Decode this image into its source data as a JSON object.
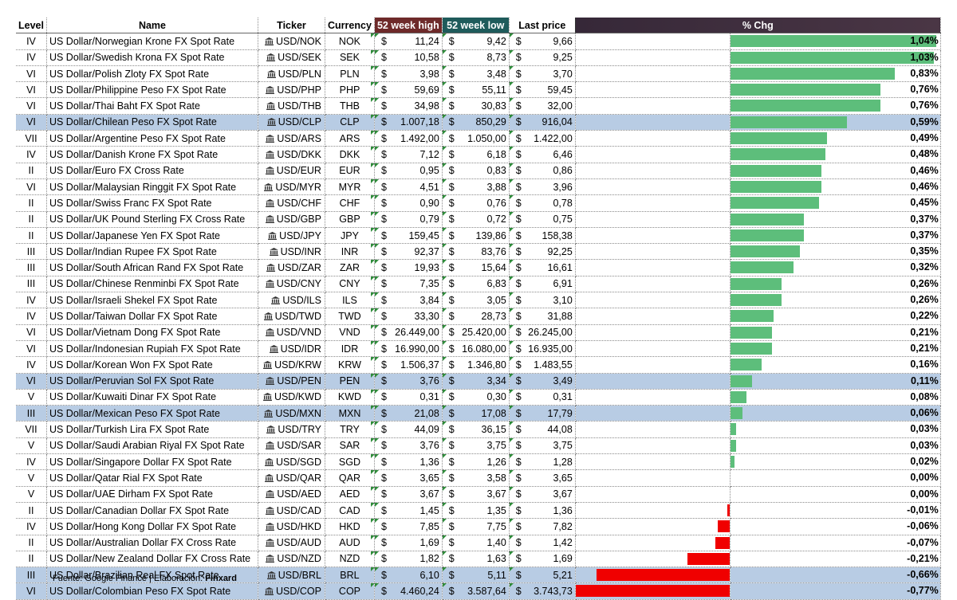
{
  "headers": {
    "level": "Level",
    "name": "Name",
    "ticker": "Ticker",
    "currency": "Currency",
    "high": "52 week high",
    "low": "52 week low",
    "last": "Last price",
    "chg": "% Chg"
  },
  "currency_symbol": "$",
  "colors": {
    "positive": "#5dbe7b",
    "negative": "#f00000",
    "highlight_row": "#b8cce4",
    "high_header": "#6e2a2a",
    "low_header": "#1f5b5b"
  },
  "chart_data": {
    "type": "bar",
    "title": "% Chg",
    "categories": [
      "USD/NOK",
      "USD/SEK",
      "USD/PLN",
      "USD/PHP",
      "USD/THB",
      "USD/CLP",
      "USD/ARS",
      "USD/DKK",
      "USD/EUR",
      "USD/MYR",
      "USD/CHF",
      "USD/GBP",
      "USD/JPY",
      "USD/INR",
      "USD/ZAR",
      "USD/CNY",
      "USD/ILS",
      "USD/TWD",
      "USD/VND",
      "USD/IDR",
      "USD/KRW",
      "USD/PEN",
      "USD/KWD",
      "USD/MXN",
      "USD/TRY",
      "USD/SAR",
      "USD/SGD",
      "USD/QAR",
      "USD/AED",
      "USD/CAD",
      "USD/HKD",
      "USD/AUD",
      "USD/NZD",
      "USD/BRL",
      "USD/COP"
    ],
    "values": [
      1.04,
      1.03,
      0.83,
      0.76,
      0.76,
      0.59,
      0.49,
      0.48,
      0.46,
      0.46,
      0.45,
      0.37,
      0.37,
      0.35,
      0.32,
      0.26,
      0.26,
      0.22,
      0.21,
      0.21,
      0.16,
      0.11,
      0.08,
      0.06,
      0.03,
      0.03,
      0.02,
      0.0,
      0.0,
      -0.01,
      -0.06,
      -0.07,
      -0.21,
      -0.66,
      -0.77
    ],
    "unit": "%"
  },
  "rows": [
    {
      "level": "IV",
      "name": "US Dollar/Norwegian Krone FX Spot Rate",
      "ticker": "USD/NOK",
      "currency": "NOK",
      "high": "11,24",
      "low": "9,42",
      "last": "9,66",
      "chg": "1,04%",
      "value": 1.04,
      "hl": false
    },
    {
      "level": "IV",
      "name": "US Dollar/Swedish Krona FX Spot Rate",
      "ticker": "USD/SEK",
      "currency": "SEK",
      "high": "10,58",
      "low": "8,73",
      "last": "9,25",
      "chg": "1,03%",
      "value": 1.03,
      "hl": false
    },
    {
      "level": "VI",
      "name": "US Dollar/Polish Zloty FX Spot Rate",
      "ticker": "USD/PLN",
      "currency": "PLN",
      "high": "3,98",
      "low": "3,48",
      "last": "3,70",
      "chg": "0,83%",
      "value": 0.83,
      "hl": false
    },
    {
      "level": "VI",
      "name": "US Dollar/Philippine Peso FX Spot Rate",
      "ticker": "USD/PHP",
      "currency": "PHP",
      "high": "59,69",
      "low": "55,11",
      "last": "59,45",
      "chg": "0,76%",
      "value": 0.76,
      "hl": false
    },
    {
      "level": "VI",
      "name": "US Dollar/Thai Baht FX Spot Rate",
      "ticker": "USD/THB",
      "currency": "THB",
      "high": "34,98",
      "low": "30,83",
      "last": "32,00",
      "chg": "0,76%",
      "value": 0.76,
      "hl": false
    },
    {
      "level": "VI",
      "name": "US Dollar/Chilean Peso FX Spot Rate",
      "ticker": "USD/CLP",
      "currency": "CLP",
      "high": "1.007,18",
      "low": "850,29",
      "last": "916,04",
      "chg": "0,59%",
      "value": 0.59,
      "hl": true
    },
    {
      "level": "VII",
      "name": "US Dollar/Argentine Peso FX Spot Rate",
      "ticker": "USD/ARS",
      "currency": "ARS",
      "high": "1.492,00",
      "low": "1.050,00",
      "last": "1.422,00",
      "chg": "0,49%",
      "value": 0.49,
      "hl": false
    },
    {
      "level": "IV",
      "name": "US Dollar/Danish Krone FX Spot Rate",
      "ticker": "USD/DKK",
      "currency": "DKK",
      "high": "7,12",
      "low": "6,18",
      "last": "6,46",
      "chg": "0,48%",
      "value": 0.48,
      "hl": false
    },
    {
      "level": "II",
      "name": "US Dollar/Euro FX Cross Rate",
      "ticker": "USD/EUR",
      "currency": "EUR",
      "high": "0,95",
      "low": "0,83",
      "last": "0,86",
      "chg": "0,46%",
      "value": 0.46,
      "hl": false
    },
    {
      "level": "VI",
      "name": "US Dollar/Malaysian Ringgit FX Spot Rate",
      "ticker": "USD/MYR",
      "currency": "MYR",
      "high": "4,51",
      "low": "3,88",
      "last": "3,96",
      "chg": "0,46%",
      "value": 0.46,
      "hl": false
    },
    {
      "level": "II",
      "name": "US Dollar/Swiss Franc FX Spot Rate",
      "ticker": "USD/CHF",
      "currency": "CHF",
      "high": "0,90",
      "low": "0,76",
      "last": "0,78",
      "chg": "0,45%",
      "value": 0.45,
      "hl": false
    },
    {
      "level": "II",
      "name": "US Dollar/UK Pound Sterling FX Cross Rate",
      "ticker": "USD/GBP",
      "currency": "GBP",
      "high": "0,79",
      "low": "0,72",
      "last": "0,75",
      "chg": "0,37%",
      "value": 0.37,
      "hl": false
    },
    {
      "level": "II",
      "name": "US Dollar/Japanese Yen FX Spot Rate",
      "ticker": "USD/JPY",
      "currency": "JPY",
      "high": "159,45",
      "low": "139,86",
      "last": "158,38",
      "chg": "0,37%",
      "value": 0.37,
      "hl": false
    },
    {
      "level": "III",
      "name": "US Dollar/Indian Rupee FX Spot Rate",
      "ticker": "USD/INR",
      "currency": "INR",
      "high": "92,37",
      "low": "83,76",
      "last": "92,25",
      "chg": "0,35%",
      "value": 0.35,
      "hl": false
    },
    {
      "level": "III",
      "name": "US Dollar/South African Rand FX Spot Rate",
      "ticker": "USD/ZAR",
      "currency": "ZAR",
      "high": "19,93",
      "low": "15,64",
      "last": "16,61",
      "chg": "0,32%",
      "value": 0.32,
      "hl": false
    },
    {
      "level": "III",
      "name": "US Dollar/Chinese Renminbi FX Spot Rate",
      "ticker": "USD/CNY",
      "currency": "CNY",
      "high": "7,35",
      "low": "6,83",
      "last": "6,91",
      "chg": "0,26%",
      "value": 0.26,
      "hl": false
    },
    {
      "level": "IV",
      "name": "US Dollar/Israeli Shekel FX Spot Rate",
      "ticker": "USD/ILS",
      "currency": "ILS",
      "high": "3,84",
      "low": "3,05",
      "last": "3,10",
      "chg": "0,26%",
      "value": 0.26,
      "hl": false
    },
    {
      "level": "IV",
      "name": "US Dollar/Taiwan Dollar FX Spot Rate",
      "ticker": "USD/TWD",
      "currency": "TWD",
      "high": "33,30",
      "low": "28,73",
      "last": "31,88",
      "chg": "0,22%",
      "value": 0.22,
      "hl": false
    },
    {
      "level": "VI",
      "name": "US Dollar/Vietnam Dong FX Spot Rate",
      "ticker": "USD/VND",
      "currency": "VND",
      "high": "26.449,00",
      "low": "25.420,00",
      "last": "26.245,00",
      "chg": "0,21%",
      "value": 0.21,
      "hl": false
    },
    {
      "level": "VI",
      "name": "US Dollar/Indonesian Rupiah FX Spot Rate",
      "ticker": "USD/IDR",
      "currency": "IDR",
      "high": "16.990,00",
      "low": "16.080,00",
      "last": "16.935,00",
      "chg": "0,21%",
      "value": 0.21,
      "hl": false
    },
    {
      "level": "IV",
      "name": "US Dollar/Korean Won FX Spot Rate",
      "ticker": "USD/KRW",
      "currency": "KRW",
      "high": "1.506,37",
      "low": "1.346,80",
      "last": "1.483,55",
      "chg": "0,16%",
      "value": 0.16,
      "hl": false
    },
    {
      "level": "VI",
      "name": "US Dollar/Peruvian Sol FX Spot Rate",
      "ticker": "USD/PEN",
      "currency": "PEN",
      "high": "3,76",
      "low": "3,34",
      "last": "3,49",
      "chg": "0,11%",
      "value": 0.11,
      "hl": true
    },
    {
      "level": "V",
      "name": "US Dollar/Kuwaiti Dinar FX Spot Rate",
      "ticker": "USD/KWD",
      "currency": "KWD",
      "high": "0,31",
      "low": "0,30",
      "last": "0,31",
      "chg": "0,08%",
      "value": 0.08,
      "hl": false
    },
    {
      "level": "III",
      "name": "US Dollar/Mexican Peso FX Spot Rate",
      "ticker": "USD/MXN",
      "currency": "MXN",
      "high": "21,08",
      "low": "17,08",
      "last": "17,79",
      "chg": "0,06%",
      "value": 0.06,
      "hl": true
    },
    {
      "level": "VII",
      "name": "US Dollar/Turkish Lira FX Spot Rate",
      "ticker": "USD/TRY",
      "currency": "TRY",
      "high": "44,09",
      "low": "36,15",
      "last": "44,08",
      "chg": "0,03%",
      "value": 0.03,
      "hl": false
    },
    {
      "level": "V",
      "name": "US Dollar/Saudi Arabian Riyal FX Spot Rate",
      "ticker": "USD/SAR",
      "currency": "SAR",
      "high": "3,76",
      "low": "3,75",
      "last": "3,75",
      "chg": "0,03%",
      "value": 0.03,
      "hl": false
    },
    {
      "level": "IV",
      "name": "US Dollar/Singapore Dollar FX Spot Rate",
      "ticker": "USD/SGD",
      "currency": "SGD",
      "high": "1,36",
      "low": "1,26",
      "last": "1,28",
      "chg": "0,02%",
      "value": 0.02,
      "hl": false
    },
    {
      "level": "V",
      "name": "US Dollar/Qatar Rial FX Spot Rate",
      "ticker": "USD/QAR",
      "currency": "QAR",
      "high": "3,65",
      "low": "3,58",
      "last": "3,65",
      "chg": "0,00%",
      "value": 0.0,
      "hl": false
    },
    {
      "level": "V",
      "name": "US Dollar/UAE Dirham FX Spot Rate",
      "ticker": "USD/AED",
      "currency": "AED",
      "high": "3,67",
      "low": "3,67",
      "last": "3,67",
      "chg": "0,00%",
      "value": 0.0,
      "hl": false
    },
    {
      "level": "II",
      "name": "US Dollar/Canadian Dollar FX Spot Rate",
      "ticker": "USD/CAD",
      "currency": "CAD",
      "high": "1,45",
      "low": "1,35",
      "last": "1,36",
      "chg": "-0,01%",
      "value": -0.01,
      "hl": false
    },
    {
      "level": "IV",
      "name": "US Dollar/Hong Kong Dollar FX Spot Rate",
      "ticker": "USD/HKD",
      "currency": "HKD",
      "high": "7,85",
      "low": "7,75",
      "last": "7,82",
      "chg": "-0,06%",
      "value": -0.06,
      "hl": false
    },
    {
      "level": "II",
      "name": "US Dollar/Australian Dollar FX Cross Rate",
      "ticker": "USD/AUD",
      "currency": "AUD",
      "high": "1,69",
      "low": "1,40",
      "last": "1,42",
      "chg": "-0,07%",
      "value": -0.07,
      "hl": false
    },
    {
      "level": "II",
      "name": "US Dollar/New Zealand Dollar FX Cross Rate",
      "ticker": "USD/NZD",
      "currency": "NZD",
      "high": "1,82",
      "low": "1,63",
      "last": "1,69",
      "chg": "-0,21%",
      "value": -0.21,
      "hl": false
    },
    {
      "level": "III",
      "name": "US Dollar/Brazilian Real FX Spot Rate",
      "ticker": "USD/BRL",
      "currency": "BRL",
      "high": "6,10",
      "low": "5,11",
      "last": "5,21",
      "chg": "-0,66%",
      "value": -0.66,
      "hl": true
    },
    {
      "level": "VI",
      "name": "US Dollar/Colombian Peso FX Spot Rate",
      "ticker": "USD/COP",
      "currency": "COP",
      "high": "4.460,24",
      "low": "3.587,64",
      "last": "3.743,73",
      "chg": "-0,77%",
      "value": -0.77,
      "hl": true
    }
  ],
  "footer": {
    "source": "Fuente: Google Finance | Elaboración: ",
    "brand": "Finxard"
  }
}
